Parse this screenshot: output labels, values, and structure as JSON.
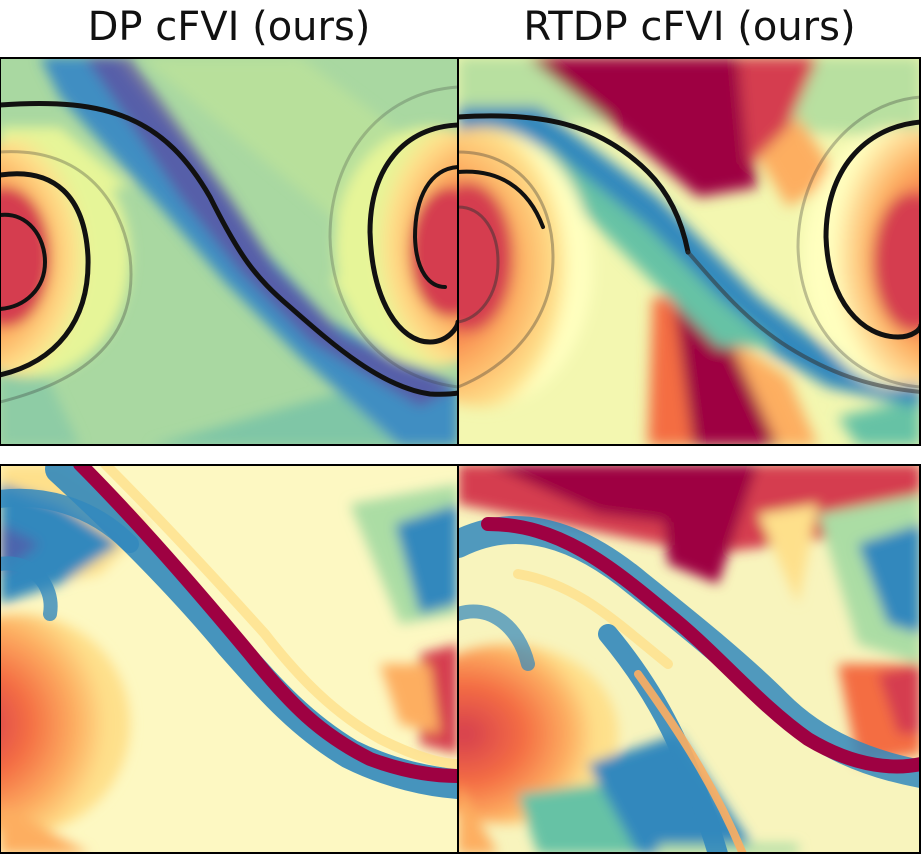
{
  "columns": [
    {
      "title": "DP cFVI (ours)"
    },
    {
      "title": "RTDP cFVI (ours)"
    }
  ],
  "colormap": {
    "name": "Spectral",
    "stops": [
      "#9e0142",
      "#d53e4f",
      "#f46d43",
      "#fdae61",
      "#fee08b",
      "#ffffbf",
      "#e6f598",
      "#abdda4",
      "#66c2a5",
      "#3288bd",
      "#5e4fa2"
    ]
  },
  "rows": [
    {
      "kind": "value-function",
      "trajectory_color": "#111111"
    },
    {
      "kind": "policy"
    }
  ],
  "frame_color": "#000000"
}
